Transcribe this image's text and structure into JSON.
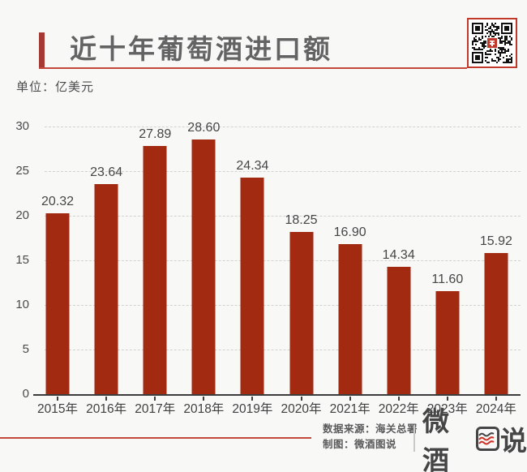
{
  "header": {
    "title": "近十年葡萄酒进口额",
    "unit_label": "单位：亿美元"
  },
  "chart_data": {
    "type": "bar",
    "title": "近十年葡萄酒进口额",
    "unit": "亿美元",
    "categories": [
      "2015年",
      "2016年",
      "2017年",
      "2018年",
      "2019年",
      "2020年",
      "2021年",
      "2022年",
      "2023年",
      "2024年"
    ],
    "values": [
      20.32,
      23.64,
      27.89,
      28.6,
      24.34,
      18.25,
      16.9,
      14.34,
      11.6,
      15.92
    ],
    "value_labels": [
      "20.32",
      "23.64",
      "27.89",
      "28.60",
      "24.34",
      "18.25",
      "16.90",
      "14.34",
      "11.60",
      "15.92"
    ],
    "ylim": [
      0,
      30
    ],
    "yticks": [
      0,
      5,
      10,
      15,
      20,
      25,
      30
    ],
    "xlabel": "",
    "ylabel": "",
    "grid": "horizontal-dashed",
    "legend": "none",
    "bar_color": "#a12a10"
  },
  "footer": {
    "source_line": "数据来源：海关总署",
    "credit_line": "制图：微酒图说",
    "logo_text": "微酒图说",
    "logo_left_chars": "微酒",
    "logo_right_char": "说"
  },
  "colors": {
    "background": "#f8f8f7",
    "bar": "#a12a10",
    "accent_red": "#c2473d",
    "accent_bar_red": "#a63a33",
    "qr_frame_red": "#c0392b",
    "title_gray": "#636363",
    "axis_text": "#4a4a4a",
    "gridline": "#d2d2d0",
    "baseline": "#3c3c3c",
    "footer_text": "#5a5a5a",
    "logo_gray": "#454545"
  }
}
